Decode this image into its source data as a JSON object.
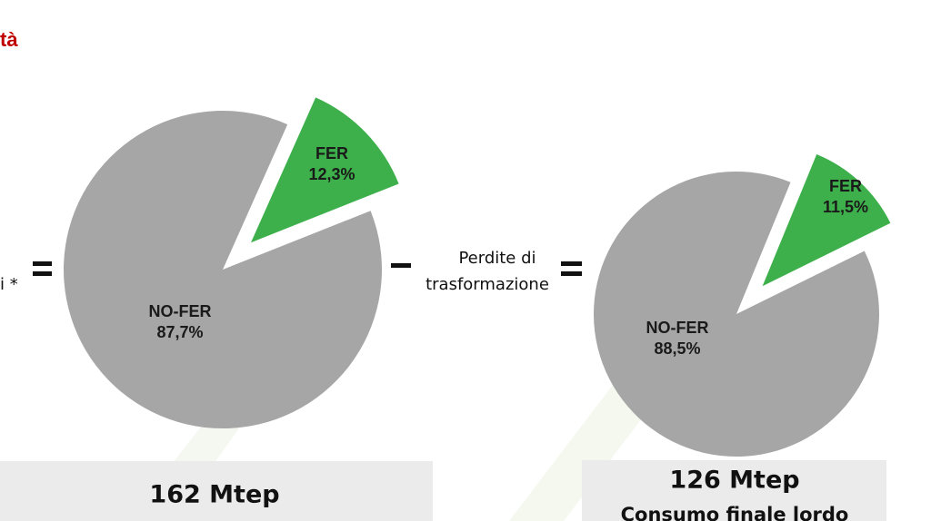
{
  "header": {
    "title": "tà",
    "left_note": "i *",
    "loss_label": [
      "Perdite di",
      "trasformazione"
    ]
  },
  "chart_data": [
    {
      "type": "pie",
      "categories": [
        "FER",
        "NO-FER"
      ],
      "values": [
        12.3,
        87.7
      ],
      "value_labels": [
        "12,3%",
        "87,7%"
      ],
      "colors": [
        "#3db04b",
        "#a6a6a6"
      ],
      "total": "162 Mtep"
    },
    {
      "type": "pie",
      "categories": [
        "FER",
        "NO-FER"
      ],
      "values": [
        11.5,
        88.5
      ],
      "value_labels": [
        "11,5%",
        "88,5%"
      ],
      "colors": [
        "#3db04b",
        "#a6a6a6"
      ],
      "total": "126 Mtep",
      "subtitle": "Consumo finale lordo"
    }
  ]
}
